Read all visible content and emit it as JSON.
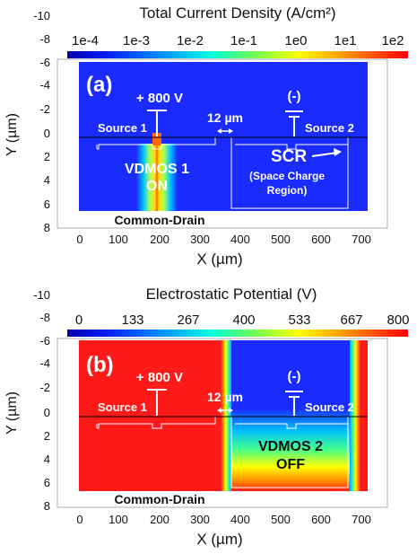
{
  "panels": [
    {
      "id": "a",
      "title": "Total Current Density (A/cm²)",
      "colorbar_ticks": [
        "1e-4",
        "1e-3",
        "1e-2",
        "1e-1",
        "1e0",
        "1e1",
        "1e2"
      ],
      "panel_label": "(a)",
      "voltage_label": "+ 800 V",
      "ground_label": "(-)",
      "gap_label": "12 µm",
      "source_left": "Source 1",
      "source_right": "Source 2",
      "device_label_1": "VDMOS 1",
      "device_label_2": "ON",
      "scr_label": "SCR",
      "scr_sub_1": "(Space Charge",
      "scr_sub_2": "Region)",
      "bottom_label": "Common-Drain",
      "x_axis_label": "X (µm)",
      "y_axis_label": "Y (µm)",
      "x_ticks": [
        "0",
        "100",
        "200",
        "300",
        "400",
        "500",
        "600",
        "700"
      ],
      "y_ticks": [
        "-10",
        "-8",
        "-6",
        "-4",
        "-2",
        "0",
        "2",
        "4",
        "6",
        "8"
      ]
    },
    {
      "id": "b",
      "title": "Electrostatic Potential (V)",
      "colorbar_ticks": [
        "0",
        "133",
        "267",
        "400",
        "533",
        "667",
        "800"
      ],
      "panel_label": "(b)",
      "voltage_label": "+ 800 V",
      "ground_label": "(-)",
      "gap_label": "12 µm",
      "source_left": "Source 1",
      "source_right": "Source 2",
      "device_label_1": "VDMOS 2",
      "device_label_2": "OFF",
      "bottom_label": "Common-Drain",
      "x_axis_label": "X (µm)",
      "y_axis_label": "Y (µm)",
      "x_ticks": [
        "0",
        "100",
        "200",
        "300",
        "400",
        "500",
        "600",
        "700"
      ],
      "y_ticks": [
        "-10",
        "-8",
        "-6",
        "-4",
        "-2",
        "0",
        "2",
        "4",
        "6",
        "8"
      ]
    }
  ],
  "colors": {
    "field_blue": "#1a2bff",
    "field_red": "#ff1a1a",
    "outline": "#ffffff"
  }
}
